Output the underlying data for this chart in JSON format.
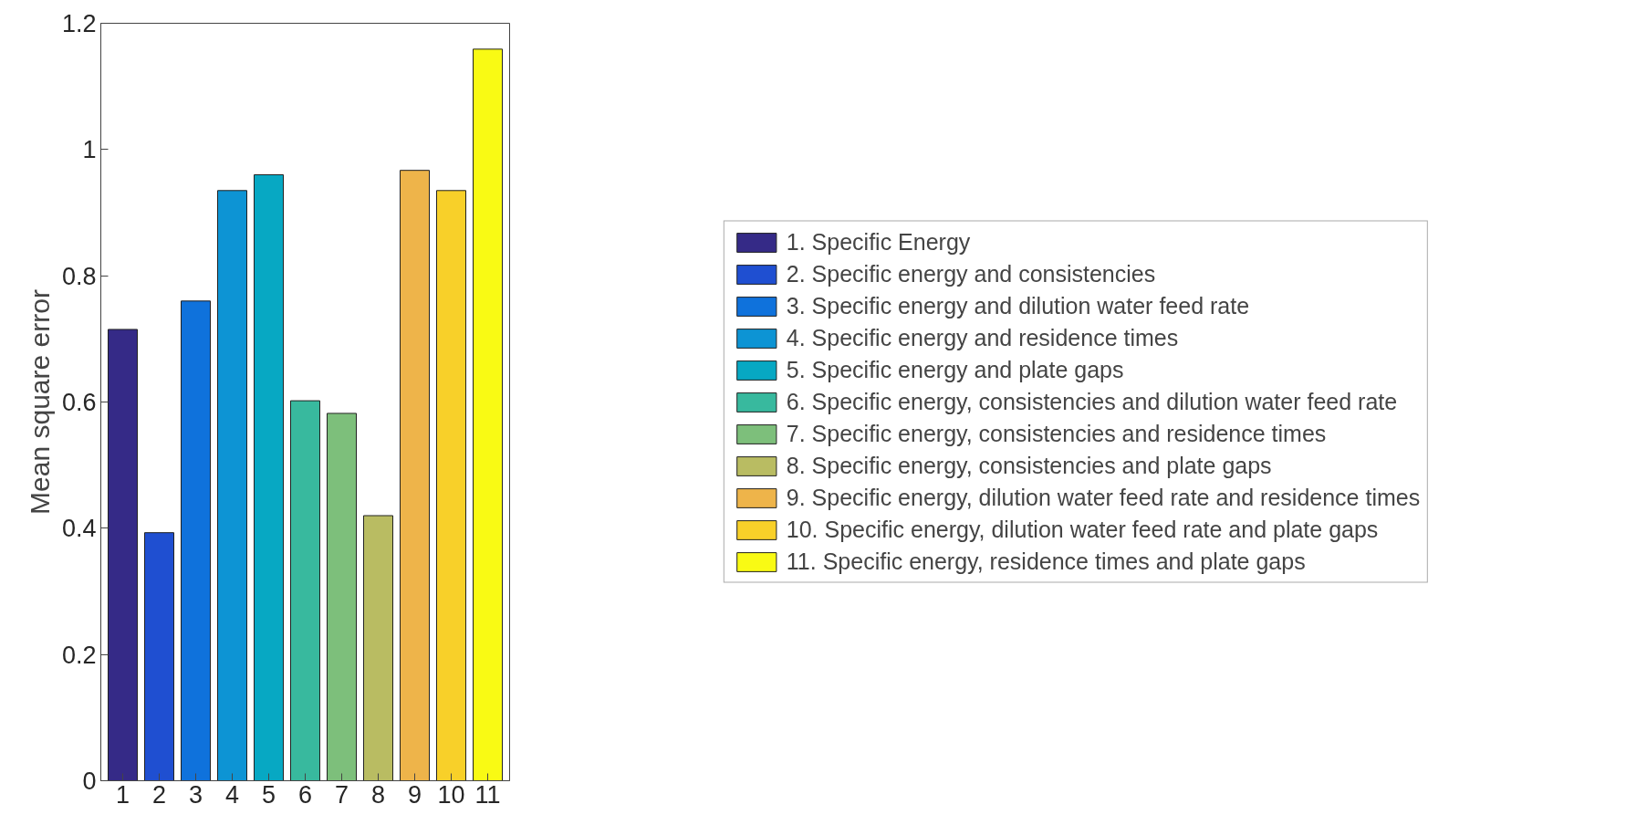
{
  "chart_data": {
    "type": "bar",
    "ylabel": "Mean square error",
    "categories": [
      "1",
      "2",
      "3",
      "4",
      "5",
      "6",
      "7",
      "8",
      "9",
      "10",
      "11"
    ],
    "ylim": [
      0,
      1.2
    ],
    "yticks": [
      0,
      0.2,
      0.4,
      0.6,
      0.8,
      1,
      1.2
    ],
    "grid": false,
    "legend": "right",
    "series": [
      {
        "name": "1. Specific Energy",
        "color": "#352a87",
        "values": [
          0.715,
          null,
          null,
          null,
          null,
          null,
          null,
          null,
          null,
          null,
          null
        ]
      },
      {
        "name": "2. Specific energy and consistencies",
        "color": "#1f4fd1",
        "values": [
          null,
          0.393,
          null,
          null,
          null,
          null,
          null,
          null,
          null,
          null,
          null
        ]
      },
      {
        "name": "3. Specific energy and dilution water feed rate",
        "color": "#0f72dc",
        "values": [
          null,
          null,
          0.76,
          null,
          null,
          null,
          null,
          null,
          null,
          null,
          null
        ]
      },
      {
        "name": "4. Specific energy and residence times",
        "color": "#0d94d4",
        "values": [
          null,
          null,
          null,
          0.935,
          null,
          null,
          null,
          null,
          null,
          null,
          null
        ]
      },
      {
        "name": "5. Specific energy and plate gaps",
        "color": "#07a8c3",
        "values": [
          null,
          null,
          null,
          null,
          0.96,
          null,
          null,
          null,
          null,
          null,
          null
        ]
      },
      {
        "name": "6. Specific energy, consistencies and dilution water feed rate",
        "color": "#38b99e",
        "values": [
          null,
          null,
          null,
          null,
          null,
          0.602,
          null,
          null,
          null,
          null,
          null
        ]
      },
      {
        "name": "7. Specific energy, consistencies and residence times",
        "color": "#7dbf7b",
        "values": [
          null,
          null,
          null,
          null,
          null,
          null,
          0.582,
          null,
          null,
          null,
          null
        ]
      },
      {
        "name": "8. Specific energy, consistencies and plate gaps",
        "color": "#b9bc62",
        "values": [
          null,
          null,
          null,
          null,
          null,
          null,
          null,
          0.42,
          null,
          null,
          null
        ]
      },
      {
        "name": "9. Specific energy, dilution water feed rate and residence times",
        "color": "#eeb44a",
        "values": [
          null,
          null,
          null,
          null,
          null,
          null,
          null,
          null,
          0.967,
          null,
          null
        ]
      },
      {
        "name": "10. Specific energy, dilution water feed rate and plate gaps",
        "color": "#f8d029",
        "values": [
          null,
          null,
          null,
          null,
          null,
          null,
          null,
          null,
          null,
          0.935,
          null
        ]
      },
      {
        "name": "11. Specific energy, residence times and plate gaps",
        "color": "#f9fa14",
        "values": [
          null,
          null,
          null,
          null,
          null,
          null,
          null,
          null,
          null,
          null,
          1.159
        ]
      }
    ]
  }
}
